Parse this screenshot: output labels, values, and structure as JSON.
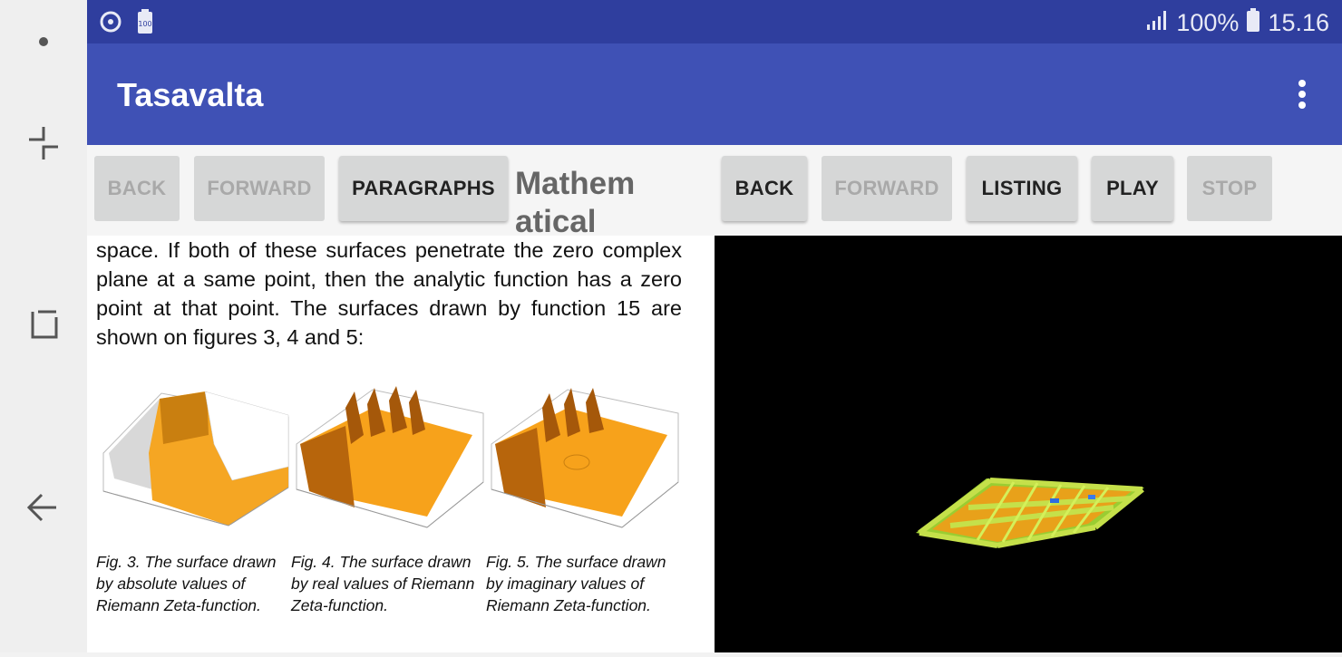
{
  "status_bar": {
    "battery_percent": "100%",
    "time": "15.16",
    "icons": [
      "sync-icon",
      "battery-saver-icon",
      "signal-icon",
      "battery-icon"
    ]
  },
  "app_bar": {
    "title": "Tasavalta"
  },
  "toolbar": {
    "left_back": "BACK",
    "left_forward": "FORWARD",
    "paragraphs": "PARAGRAPHS",
    "section_title": "Mathem atical",
    "right_back": "BACK",
    "right_forward": "FORWARD",
    "listing": "LISTING",
    "play": "PLAY",
    "stop": "STOP"
  },
  "document": {
    "paragraph": "space. If both of these surfaces penetrate the zero complex plane at a same point, then the analytic function has a zero point at that point. The surfaces drawn by function 15 are shown on figures 3, 4 and 5:",
    "figures": [
      {
        "caption": "Fig. 3. The surface drawn by absolute values of Riemann Zeta-function."
      },
      {
        "caption": "Fig. 4. The surface drawn by real values of Riemann Zeta-function."
      },
      {
        "caption": "Fig. 5. The surface drawn by imaginary values of Riemann Zeta-function."
      }
    ]
  },
  "colors": {
    "status_bar": "#2f3e9e",
    "app_bar": "#3f51b5",
    "surface_orange": "#f7a21b",
    "viewer_bg": "#000000"
  }
}
